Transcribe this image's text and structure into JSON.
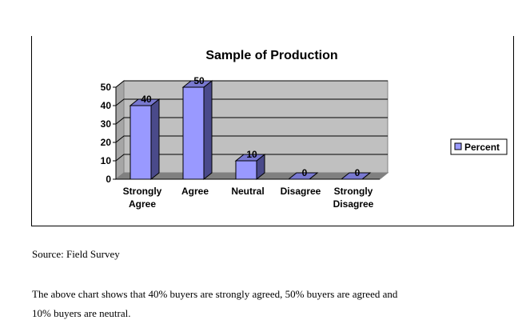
{
  "chart_data": {
    "type": "bar",
    "title": "Sample of Production",
    "categories": [
      [
        "Strongly",
        "Agree"
      ],
      [
        "Agree"
      ],
      [
        "Neutral"
      ],
      [
        "Disagree"
      ],
      [
        "Strongly",
        "Disagree"
      ]
    ],
    "series": [
      {
        "name": "Percent",
        "values": [
          40,
          50,
          10,
          0,
          0
        ],
        "color": "#9999FF"
      }
    ],
    "yticks": [
      0,
      10,
      20,
      30,
      40,
      50
    ],
    "ylim": [
      0,
      50
    ],
    "grid": true,
    "legend_position": "right",
    "plot_background": "#C0C0C0"
  },
  "text": {
    "source": "Source: Field Survey",
    "paragraph_line1": "The above chart shows that 40% buyers are strongly agreed, 50% buyers are agreed and",
    "paragraph_line2": "10% buyers are neutral."
  }
}
